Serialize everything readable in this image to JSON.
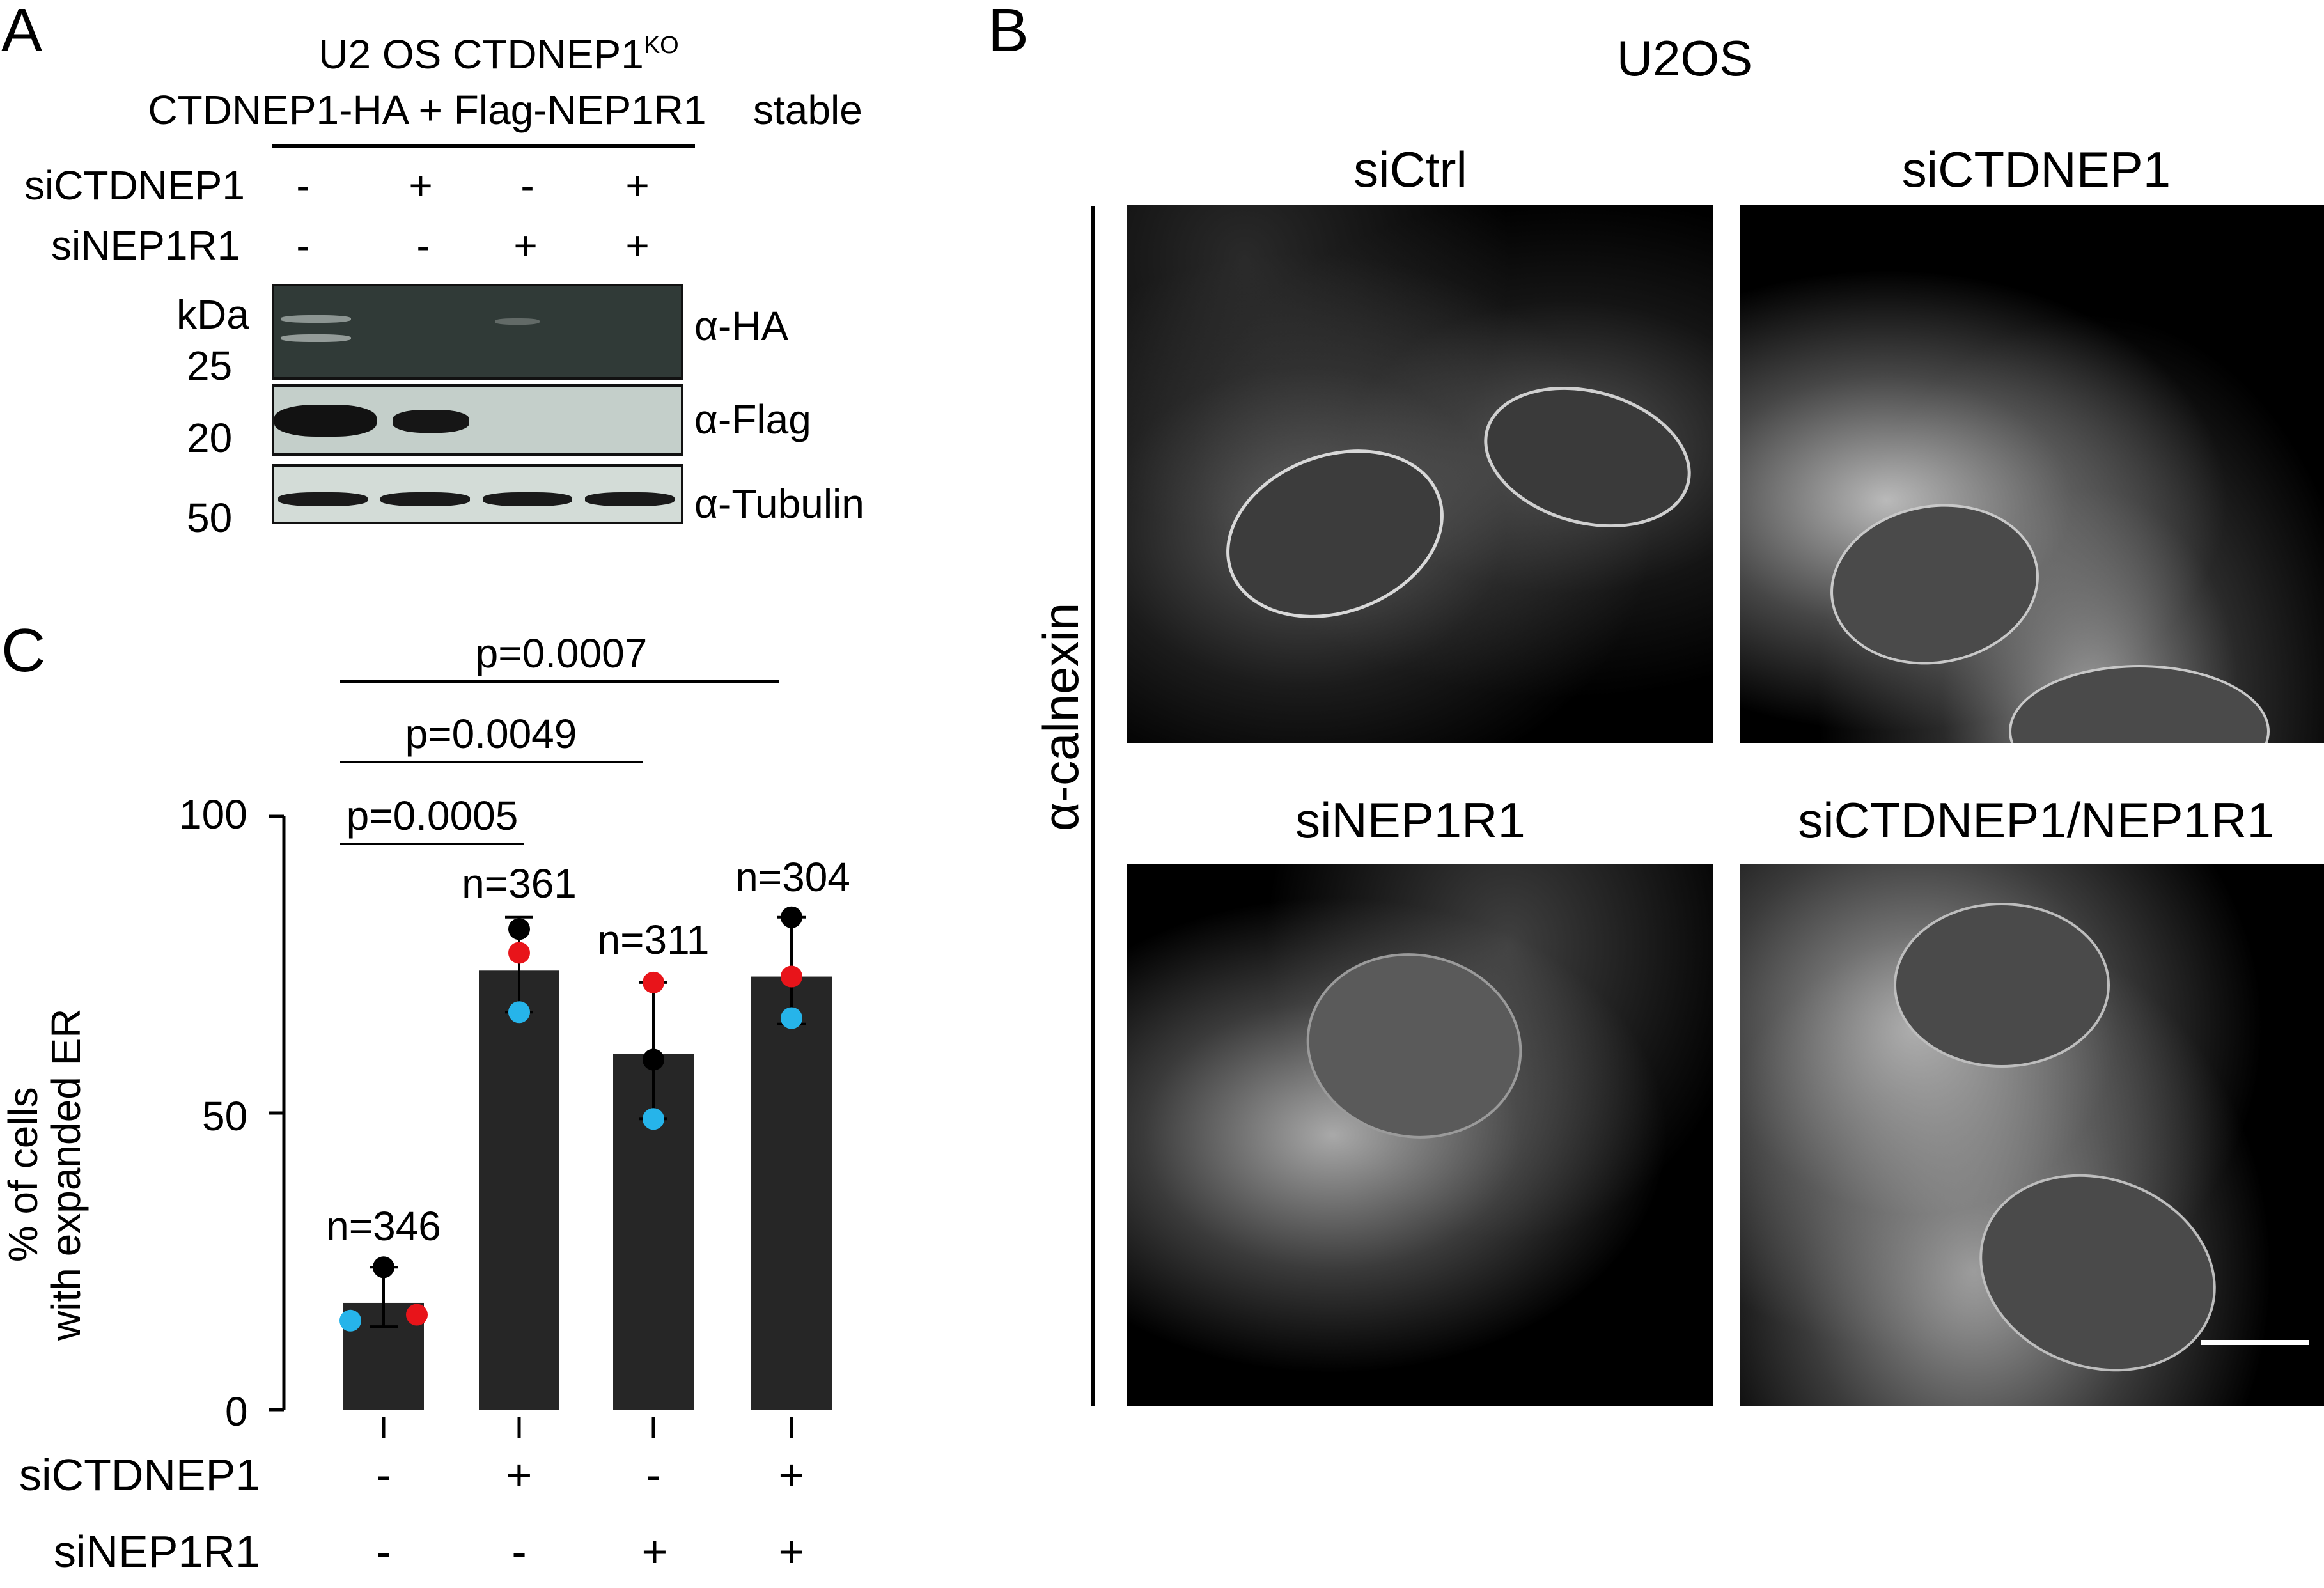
{
  "panelA": {
    "letter": "A",
    "cell_line": "U2 OS CTDNEP1",
    "cell_line_superscript": "KO",
    "construct": "CTDNEP1-HA + Flag-NEP1R1",
    "stable_label": "stable",
    "row_labels": [
      "siCTDNEP1",
      "siNEP1R1"
    ],
    "row1_signs": [
      "-",
      "+",
      "-",
      "+"
    ],
    "row2_signs": [
      "-",
      "-",
      "+",
      "+"
    ],
    "kda_label": "kDa",
    "markers": [
      "25",
      "20",
      "50"
    ],
    "antibodies": [
      "α-HA",
      "α-Flag",
      "α-Tubulin"
    ],
    "blot_colors": {
      "ha": "#303a37",
      "flag": "#c4cfca",
      "tubulin": "#d3dcd7"
    }
  },
  "panelB": {
    "letter": "B",
    "title": "U2OS",
    "stain_label": "α-calnexin",
    "conditions": [
      "siCtrl",
      "siCTDNEP1",
      "siNEP1R1",
      "siCTDNEP1/NEP1R1"
    ]
  },
  "panelC": {
    "letter": "C",
    "p_values": [
      "p=0.0007",
      "p=0.0049",
      "p=0.0005"
    ],
    "n_labels": [
      "n=346",
      "n=361",
      "n=311",
      "n=304"
    ],
    "row_labels": [
      "siCTDNEP1",
      "siNEP1R1"
    ],
    "row1_signs": [
      "-",
      "+",
      "-",
      "+"
    ],
    "row2_signs": [
      "-",
      "-",
      "+",
      "+"
    ]
  },
  "chart_data": {
    "type": "bar",
    "categories": [
      "-/-",
      "+/-",
      "-/+",
      "+/+"
    ],
    "values": [
      18,
      74,
      60,
      73
    ],
    "error_low": [
      14,
      67,
      49,
      65
    ],
    "error_high": [
      24,
      83,
      72,
      83
    ],
    "replicates": [
      {
        "color": "#000000",
        "values": [
          24,
          81,
          59,
          83
        ]
      },
      {
        "color": "#e8141a",
        "values": [
          16,
          77,
          72,
          73
        ]
      },
      {
        "color": "#26b4ea",
        "values": [
          15,
          67,
          49,
          66
        ]
      }
    ],
    "ylabel": "% of cells with expanded ER",
    "ylabel_lines": [
      "% of cells",
      "with expanded ER"
    ],
    "ylim": [
      0,
      100
    ],
    "yticks": [
      0,
      50,
      100
    ],
    "bar_color": "#262626"
  }
}
